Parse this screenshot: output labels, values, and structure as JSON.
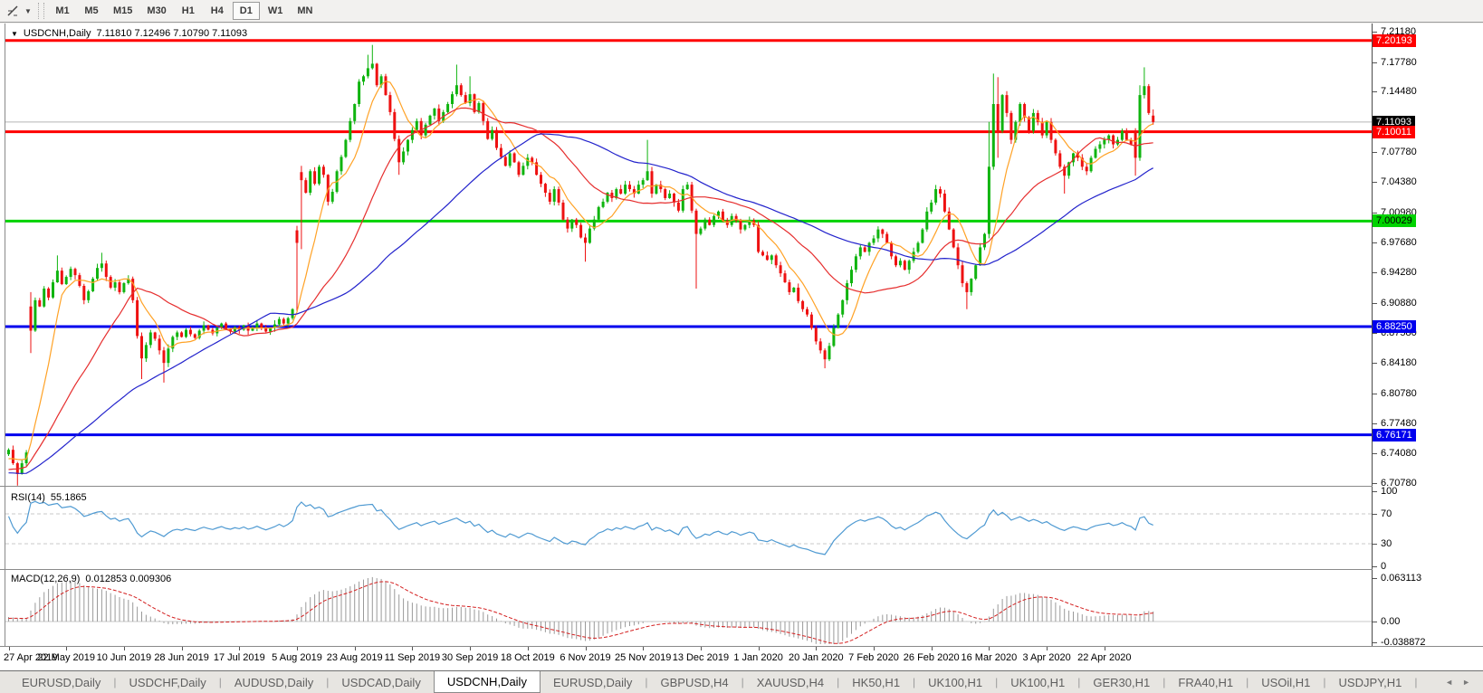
{
  "toolbar": {
    "tool_icon": "crosshair-tool",
    "dropdown_caret": "▼",
    "timeframes": [
      {
        "label": "M1",
        "active": false
      },
      {
        "label": "M5",
        "active": false
      },
      {
        "label": "M15",
        "active": false
      },
      {
        "label": "M30",
        "active": false
      },
      {
        "label": "H1",
        "active": false
      },
      {
        "label": "H4",
        "active": false
      },
      {
        "label": "D1",
        "active": true
      },
      {
        "label": "W1",
        "active": false
      },
      {
        "label": "MN",
        "active": false
      }
    ]
  },
  "chart": {
    "title": {
      "caret": "▼",
      "symbol": "USDCNH,Daily",
      "ohlc": "7.11810 7.12496 7.10790 7.11093"
    }
  },
  "chart_data": {
    "type": "candlestick",
    "symbol": "USDCNH",
    "period": "Daily",
    "ohlc_current": {
      "open": 7.1181,
      "high": 7.12496,
      "low": 7.1079,
      "close": 7.11093
    },
    "colors": {
      "up": "#0fb40f",
      "down": "#ee1111",
      "ma_fast": "#ffa226",
      "ma_mid": "#e62e2e",
      "ma_slow": "#2323cc",
      "rsi": "#4f9ad2",
      "macd_hist": "#9a9a9a",
      "macd_signal": "#d42020"
    },
    "ma_periods": {
      "fast": 8,
      "mid": 25,
      "slow": 55
    },
    "prehistory": [
      6.742,
      6.738,
      6.735,
      6.739,
      6.733,
      6.728,
      6.731,
      6.726,
      6.722,
      6.718,
      6.721,
      6.716,
      6.712,
      6.709,
      6.713,
      6.707,
      6.71,
      6.705,
      6.708,
      6.712,
      6.716,
      6.711,
      6.707,
      6.703,
      6.706,
      6.71,
      6.714,
      6.709,
      6.705,
      6.708,
      6.712,
      6.717,
      6.713,
      6.709,
      6.705,
      6.709,
      6.713,
      6.718,
      6.722,
      6.718,
      6.714,
      6.71,
      6.714,
      6.718,
      6.722,
      6.726,
      6.73,
      6.734,
      6.73,
      6.726,
      6.731,
      6.735,
      6.739,
      6.735,
      6.74
    ],
    "closes": [
      6.745,
      6.73,
      6.718,
      6.73,
      6.742,
      6.878,
      6.912,
      6.905,
      6.925,
      6.915,
      6.932,
      6.945,
      6.93,
      6.938,
      6.947,
      6.94,
      6.928,
      6.912,
      6.922,
      6.936,
      6.948,
      6.953,
      6.938,
      6.926,
      6.932,
      6.921,
      6.931,
      6.936,
      6.912,
      6.872,
      6.847,
      6.862,
      6.876,
      6.869,
      6.856,
      6.842,
      6.858,
      6.871,
      6.876,
      6.871,
      6.879,
      6.874,
      6.87,
      6.878,
      6.884,
      6.879,
      6.875,
      6.881,
      6.886,
      6.88,
      6.877,
      6.882,
      6.879,
      6.884,
      6.878,
      6.881,
      6.886,
      6.881,
      6.877,
      6.881,
      6.885,
      6.891,
      6.886,
      6.892,
      6.902,
      6.976,
      7.046,
      7.032,
      7.056,
      7.042,
      7.061,
      7.052,
      7.022,
      7.033,
      7.056,
      7.072,
      7.091,
      7.112,
      7.131,
      7.156,
      7.162,
      7.171,
      7.176,
      7.152,
      7.162,
      7.141,
      7.122,
      7.092,
      7.066,
      7.078,
      7.091,
      7.102,
      7.112,
      7.096,
      7.108,
      7.118,
      7.126,
      7.112,
      7.122,
      7.131,
      7.142,
      7.152,
      7.141,
      7.132,
      7.142,
      7.122,
      7.132,
      7.112,
      7.092,
      7.102,
      7.082,
      7.072,
      7.062,
      7.076,
      7.066,
      7.052,
      7.062,
      7.071,
      7.066,
      7.052,
      7.042,
      7.032,
      7.022,
      7.036,
      7.021,
      7.002,
      6.992,
      7.002,
      6.996,
      6.982,
      6.976,
      6.992,
      7.002,
      7.016,
      7.022,
      7.032,
      7.026,
      7.036,
      7.031,
      7.041,
      7.036,
      7.031,
      7.041,
      7.046,
      7.056,
      7.031,
      7.041,
      7.036,
      7.026,
      7.031,
      7.021,
      7.012,
      7.036,
      7.041,
      7.012,
      6.986,
      6.992,
      7.002,
      6.996,
      7.006,
      7.011,
      7.001,
      6.996,
      7.006,
      7.001,
      6.991,
      6.996,
      7.001,
      6.996,
      6.966,
      6.962,
      6.957,
      6.962,
      6.951,
      6.942,
      6.932,
      6.921,
      6.926,
      6.911,
      6.902,
      6.896,
      6.881,
      6.866,
      6.856,
      6.846,
      6.861,
      6.881,
      6.896,
      6.912,
      6.931,
      6.946,
      6.961,
      6.971,
      6.966,
      6.976,
      6.981,
      6.991,
      6.986,
      6.976,
      6.961,
      6.951,
      6.956,
      6.946,
      6.956,
      6.966,
      6.976,
      6.991,
      7.011,
      7.021,
      7.036,
      7.031,
      7.011,
      6.991,
      6.971,
      6.951,
      6.931,
      6.921,
      6.936,
      6.951,
      6.971,
      6.986,
      7.061,
      7.131,
      7.101,
      7.141,
      7.121,
      7.091,
      7.111,
      7.131,
      7.116,
      7.101,
      7.121,
      7.111,
      7.096,
      7.111,
      7.091,
      7.076,
      7.061,
      7.051,
      7.066,
      7.076,
      7.071,
      7.061,
      7.056,
      7.071,
      7.081,
      7.086,
      7.091,
      7.096,
      7.086,
      7.091,
      7.101,
      7.091,
      7.086,
      7.071,
      7.141,
      7.151,
      7.121,
      7.111
    ],
    "opens_override": {
      "5": 6.905,
      "65": 6.99,
      "66": 7.055,
      "254": 7.101,
      "258": 7.1181
    },
    "wick_override": {
      "2": [
        null,
        6.705
      ],
      "5": [
        6.921,
        6.853
      ],
      "11": [
        6.962,
        null
      ],
      "21": [
        6.965,
        null
      ],
      "30": [
        null,
        6.824
      ],
      "35": [
        null,
        6.82
      ],
      "65": [
        6.995,
        6.9
      ],
      "66": [
        7.062,
        6.969
      ],
      "81": [
        7.186,
        null
      ],
      "82": [
        7.197,
        null
      ],
      "88": [
        null,
        7.052
      ],
      "101": [
        7.175,
        null
      ],
      "104": [
        7.162,
        null
      ],
      "130": [
        null,
        6.955
      ],
      "144": [
        7.091,
        null
      ],
      "155": [
        null,
        6.925
      ],
      "184": [
        null,
        6.836
      ],
      "216": [
        null,
        6.902
      ],
      "221": [
        7.111,
        6.981
      ],
      "222": [
        7.165,
        null
      ],
      "223": [
        7.161,
        7.071
      ],
      "238": [
        null,
        7.031
      ],
      "254": [
        null,
        7.051
      ],
      "255": [
        7.152,
        null
      ],
      "256": [
        7.172,
        null
      ],
      "258": [
        7.125,
        7.1079
      ]
    },
    "hlines": [
      {
        "price": 7.20193,
        "color": "#ff0000",
        "width": 3,
        "badge": {
          "text": "7.20193",
          "bg": "#ff0000",
          "fg": "#ffffff"
        }
      },
      {
        "price": 7.11093,
        "color": "#b4b4b4",
        "width": 1,
        "badge": {
          "text": "7.11093",
          "bg": "#000000",
          "fg": "#ffffff"
        }
      },
      {
        "price": 7.10011,
        "color": "#ff0000",
        "width": 3,
        "badge": {
          "text": "7.10011",
          "bg": "#ff0000",
          "fg": "#ffffff"
        }
      },
      {
        "price": 7.00029,
        "color": "#00d300",
        "width": 3,
        "badge": {
          "text": "7.00029",
          "bg": "#00d300",
          "fg": "#000000"
        }
      },
      {
        "price": 6.8825,
        "color": "#0000ee",
        "width": 3,
        "badge": {
          "text": "6.88250",
          "bg": "#0000ee",
          "fg": "#ffffff"
        }
      },
      {
        "price": 6.76171,
        "color": "#0000ee",
        "width": 3,
        "badge": {
          "text": "6.76171",
          "bg": "#0000ee",
          "fg": "#ffffff"
        }
      }
    ],
    "y_axis_ticks": [
      "7.21180",
      "7.17780",
      "7.14480",
      "7.07780",
      "7.04380",
      "7.00980",
      "6.97680",
      "6.94280",
      "6.90880",
      "6.87580",
      "6.84180",
      "6.80780",
      "6.77480",
      "6.74080",
      "6.70780"
    ],
    "x_axis_dates": [
      "27 Apr 2019",
      "22 May 2019",
      "10 Jun 2019",
      "28 Jun 2019",
      "17 Jul 2019",
      "5 Aug 2019",
      "23 Aug 2019",
      "11 Sep 2019",
      "30 Sep 2019",
      "18 Oct 2019",
      "6 Nov 2019",
      "25 Nov 2019",
      "13 Dec 2019",
      "1 Jan 2020",
      "20 Jan 2020",
      "7 Feb 2020",
      "26 Feb 2020",
      "16 Mar 2020",
      "3 Apr 2020",
      "22 Apr 2020"
    ],
    "rsi": {
      "name": "RSI(14)",
      "value": "55.1865",
      "period": 14,
      "ticks": [
        "100",
        "70",
        "30",
        "0"
      ],
      "levels": [
        70,
        30
      ]
    },
    "macd": {
      "name": "MACD(12,26,9)",
      "value": "0.012853 0.009306",
      "fast": 12,
      "slow": 26,
      "signal": 9,
      "ticks": [
        "0.063113",
        "0.00",
        "-0.038872"
      ]
    }
  },
  "tabs": {
    "items": [
      "EURUSD,Daily",
      "USDCHF,Daily",
      "AUDUSD,Daily",
      "USDCAD,Daily",
      "USDCNH,Daily",
      "EURUSD,Daily",
      "GBPUSD,H4",
      "XAUUSD,H4",
      "HK50,H1",
      "UK100,H1",
      "UK100,H1",
      "GER30,H1",
      "FRA40,H1",
      "USOil,H1",
      "USDJPY,H1"
    ],
    "active_index": 4,
    "left_arrow": "◄",
    "right_arrow": "►"
  }
}
